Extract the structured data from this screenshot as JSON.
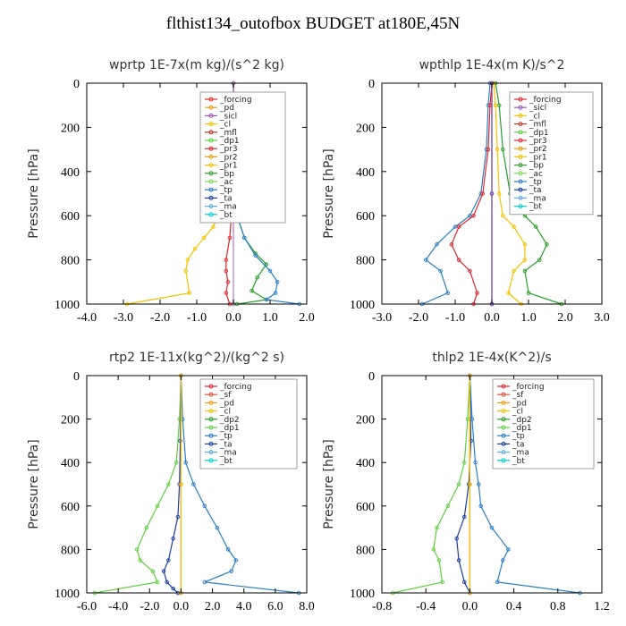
{
  "figure": {
    "title": "flthist134_outofbox  BUDGET at180E,45N"
  },
  "chart_data": [
    {
      "type": "line",
      "title": "wprtp  1E-7x(m kg)/(s^2 kg)",
      "ylabel": "Pressure [hPa]",
      "xlim": [
        -4,
        2
      ],
      "ylim": [
        1000,
        0
      ],
      "xticks": [
        "-4.0",
        "-3.0",
        "-2.0",
        "-1.0",
        "0.0",
        "1.0",
        "2.0"
      ],
      "yticks": [
        "0",
        "200",
        "400",
        "600",
        "800",
        "1000"
      ],
      "legend": [
        "_forcing",
        "_pd",
        "_sicl",
        "_cl",
        "_mfl",
        "_dp1",
        "_pr3",
        "_pr2",
        "_pr1",
        "_bp",
        "_ac",
        "_tp",
        "_ta",
        "_ma",
        "_bt"
      ],
      "series": [
        {
          "name": "_pr1",
          "color": "#f5c200",
          "x": [
            0,
            -0.02,
            -0.15,
            -0.3,
            -0.55,
            -0.8,
            -1.05,
            -1.25,
            -1.3,
            -1.2,
            -2.9
          ],
          "y": [
            0,
            200,
            400,
            550,
            650,
            700,
            750,
            800,
            850,
            950,
            1000
          ]
        },
        {
          "name": "_bp",
          "color": "#2a9e2a",
          "x": [
            0,
            0.05,
            0.1,
            0.3,
            0.6,
            0.9,
            0.65,
            0.5,
            0.9,
            0.1
          ],
          "y": [
            0,
            300,
            600,
            700,
            770,
            820,
            880,
            940,
            980,
            1000
          ]
        },
        {
          "name": "_tp",
          "color": "#2b7fc4",
          "x": [
            0,
            0.05,
            0.1,
            0.3,
            0.6,
            1.0,
            1.2,
            1.15,
            0.9,
            1.8
          ],
          "y": [
            0,
            300,
            600,
            700,
            780,
            850,
            900,
            950,
            980,
            1000
          ]
        },
        {
          "name": "_pr3",
          "color": "#e0262b",
          "x": [
            0,
            -0.02,
            -0.05,
            -0.1,
            -0.2,
            -0.2,
            -0.15,
            -0.2,
            -0.1
          ],
          "y": [
            0,
            300,
            600,
            700,
            800,
            850,
            900,
            950,
            1000
          ]
        },
        {
          "name": "_forcing",
          "color": "#111111",
          "x": [
            0,
            0,
            0
          ],
          "y": [
            0,
            500,
            1000
          ]
        },
        {
          "name": "_pd",
          "color": "#c9a0dc",
          "x": [
            0,
            0,
            0
          ],
          "y": [
            0,
            500,
            1000
          ]
        }
      ]
    },
    {
      "type": "line",
      "title": "wpthlp  1E-4x(m K)/s^2",
      "ylabel": "Pressure [hPa]",
      "xlim": [
        -3,
        3
      ],
      "ylim": [
        1000,
        0
      ],
      "xticks": [
        "-3.0",
        "-2.0",
        "-1.0",
        "0.0",
        "1.0",
        "2.0",
        "3.0"
      ],
      "yticks": [
        "0",
        "200",
        "400",
        "600",
        "800",
        "1000"
      ],
      "legend": [
        "_forcing",
        "_sicl",
        "_cl",
        "_mfl",
        "_dp1",
        "_pr3",
        "_pr2",
        "_pr1",
        "_bp",
        "_ac",
        "_tp",
        "_ta",
        "_ma",
        "_bt"
      ],
      "series": [
        {
          "name": "_bp",
          "color": "#2a9e2a",
          "x": [
            0.1,
            0.2,
            0.3,
            0.5,
            0.9,
            1.2,
            1.5,
            1.3,
            0.9,
            1.0,
            1.9
          ],
          "y": [
            0,
            100,
            300,
            500,
            600,
            650,
            730,
            800,
            850,
            950,
            1000
          ]
        },
        {
          "name": "_tp",
          "color": "#2b7fc4",
          "x": [
            -0.05,
            -0.1,
            -0.15,
            -0.3,
            -0.6,
            -1.0,
            -1.5,
            -1.8,
            -1.4,
            -1.2,
            -1.9
          ],
          "y": [
            0,
            100,
            300,
            500,
            600,
            650,
            730,
            800,
            850,
            950,
            1000
          ]
        },
        {
          "name": "_pr3",
          "color": "#e0262b",
          "x": [
            0,
            -0.05,
            -0.1,
            -0.25,
            -0.5,
            -0.9,
            -1.1,
            -0.9,
            -0.6,
            -0.4,
            -0.5
          ],
          "y": [
            0,
            100,
            300,
            500,
            600,
            650,
            730,
            800,
            850,
            950,
            1000
          ]
        },
        {
          "name": "_pr1",
          "color": "#f5c200",
          "x": [
            0.05,
            0.1,
            0.15,
            0.2,
            0.3,
            0.6,
            0.9,
            0.9,
            0.6,
            0.45,
            0.8
          ],
          "y": [
            0,
            100,
            300,
            500,
            600,
            650,
            730,
            800,
            850,
            950,
            1000
          ]
        },
        {
          "name": "_forcing",
          "color": "#c9a0dc",
          "x": [
            0,
            0,
            0
          ],
          "y": [
            0,
            500,
            1000
          ]
        },
        {
          "name": "_sicl",
          "color": "#6b3fa0",
          "x": [
            0,
            0,
            0
          ],
          "y": [
            0,
            500,
            1000
          ]
        }
      ]
    },
    {
      "type": "line",
      "title": "rtp2  1E-11x(kg^2)/(kg^2 s)",
      "ylabel": "Pressure [hPa]",
      "xlim": [
        -6,
        8
      ],
      "ylim": [
        1000,
        0
      ],
      "xticks": [
        "-6.0",
        "-4.0",
        "-2.0",
        "0.0",
        "2.0",
        "4.0",
        "6.0",
        "8.0"
      ],
      "yticks": [
        "0",
        "200",
        "400",
        "600",
        "800",
        "1000"
      ],
      "legend": [
        "_forcing",
        "_sf",
        "_pd",
        "_cl",
        "_dp2",
        "_dp1",
        "_tp",
        "_ta",
        "_ma",
        "_bt"
      ],
      "series": [
        {
          "name": "_dp1",
          "color": "#5fcf3f",
          "x": [
            0,
            -0.1,
            -0.3,
            -0.8,
            -1.5,
            -2.2,
            -2.8,
            -2.6,
            -1.8,
            -1.5,
            -5.5
          ],
          "y": [
            0,
            200,
            400,
            500,
            600,
            700,
            800,
            850,
            900,
            950,
            1000
          ]
        },
        {
          "name": "_tp",
          "color": "#2b7fc4",
          "x": [
            0,
            0.1,
            0.3,
            0.8,
            1.5,
            2.3,
            3.0,
            3.5,
            3.2,
            1.5,
            7.5
          ],
          "y": [
            0,
            200,
            400,
            500,
            600,
            700,
            800,
            850,
            900,
            950,
            1000
          ]
        },
        {
          "name": "_ta",
          "color": "#1b3fa0",
          "x": [
            0,
            -0.05,
            -0.1,
            -0.2,
            -0.5,
            -0.8,
            -1.1,
            -0.9,
            -0.5,
            -0.2
          ],
          "y": [
            0,
            300,
            500,
            650,
            750,
            850,
            900,
            950,
            980,
            1000
          ]
        },
        {
          "name": "_forcing",
          "color": "#e0262b",
          "x": [
            0,
            0,
            0
          ],
          "y": [
            0,
            500,
            1000
          ]
        },
        {
          "name": "_cl",
          "color": "#f5c200",
          "x": [
            0,
            0,
            0
          ],
          "y": [
            0,
            500,
            1000
          ]
        }
      ]
    },
    {
      "type": "line",
      "title": "thlp2  1E-4x(K^2)/s",
      "ylabel": "Pressure [hPa]",
      "xlim": [
        -0.8,
        1.2
      ],
      "ylim": [
        1000,
        0
      ],
      "xticks": [
        "-0.8",
        "-0.4",
        "0.0",
        "0.4",
        "0.8",
        "1.2"
      ],
      "yticks": [
        "0",
        "200",
        "400",
        "600",
        "800",
        "1000"
      ],
      "legend": [
        "_forcing",
        "_sf",
        "_pd",
        "_cl",
        "_dp2",
        "_dp1",
        "_tp",
        "_ta",
        "_ma",
        "_bt"
      ],
      "series": [
        {
          "name": "_dp1",
          "color": "#5fcf3f",
          "x": [
            0,
            -0.02,
            -0.05,
            -0.1,
            -0.2,
            -0.3,
            -0.33,
            -0.28,
            -0.25,
            -0.7
          ],
          "y": [
            0,
            200,
            400,
            500,
            600,
            700,
            800,
            850,
            950,
            1000
          ]
        },
        {
          "name": "_tp",
          "color": "#2b7fc4",
          "x": [
            0,
            0.02,
            0.05,
            0.08,
            0.1,
            0.2,
            0.35,
            0.3,
            0.25,
            1.0
          ],
          "y": [
            0,
            200,
            400,
            500,
            600,
            700,
            800,
            850,
            950,
            1000
          ]
        },
        {
          "name": "_ta",
          "color": "#1b3fa0",
          "x": [
            0,
            0.01,
            -0.01,
            -0.05,
            -0.12,
            -0.1,
            -0.05,
            0
          ],
          "y": [
            0,
            300,
            500,
            650,
            750,
            850,
            950,
            1000
          ]
        },
        {
          "name": "_forcing",
          "color": "#e0262b",
          "x": [
            0,
            0,
            0
          ],
          "y": [
            0,
            500,
            1000
          ]
        },
        {
          "name": "_cl",
          "color": "#f5c200",
          "x": [
            0,
            0,
            0
          ],
          "y": [
            0,
            500,
            1000
          ]
        }
      ]
    }
  ]
}
